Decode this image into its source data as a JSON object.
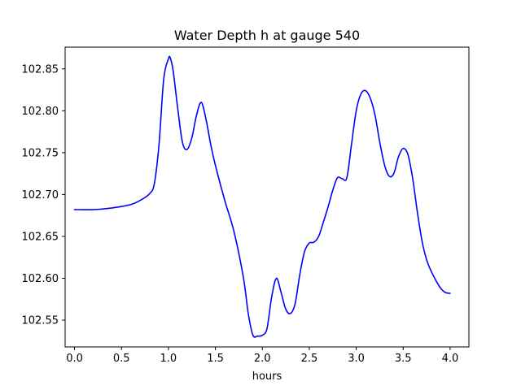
{
  "chart_data": {
    "type": "line",
    "title": "Water Depth h at gauge 540",
    "xlabel": "hours",
    "ylabel": "",
    "xlim": [
      -0.1,
      4.2
    ],
    "ylim": [
      102.518,
      102.876
    ],
    "x_ticks": [
      0.0,
      0.5,
      1.0,
      1.5,
      2.0,
      2.5,
      3.0,
      3.5,
      4.0
    ],
    "x_tick_labels": [
      "0.0",
      "0.5",
      "1.0",
      "1.5",
      "2.0",
      "2.5",
      "3.0",
      "3.5",
      "4.0"
    ],
    "y_ticks": [
      102.55,
      102.6,
      102.65,
      102.7,
      102.75,
      102.8,
      102.85
    ],
    "y_tick_labels": [
      "102.55",
      "102.60",
      "102.65",
      "102.70",
      "102.75",
      "102.80",
      "102.85"
    ],
    "grid": false,
    "legend": "none",
    "series": [
      {
        "color": "#0000ff",
        "x": [
          0.0,
          0.2,
          0.4,
          0.6,
          0.7,
          0.8,
          0.85,
          0.9,
          0.95,
          1.0,
          1.02,
          1.05,
          1.1,
          1.15,
          1.2,
          1.25,
          1.3,
          1.35,
          1.4,
          1.45,
          1.5,
          1.6,
          1.7,
          1.8,
          1.85,
          1.9,
          1.95,
          2.0,
          2.05,
          2.1,
          2.15,
          2.2,
          2.25,
          2.3,
          2.35,
          2.4,
          2.45,
          2.5,
          2.55,
          2.6,
          2.65,
          2.7,
          2.75,
          2.8,
          2.85,
          2.9,
          2.95,
          3.0,
          3.05,
          3.1,
          3.15,
          3.2,
          3.25,
          3.3,
          3.35,
          3.4,
          3.45,
          3.5,
          3.55,
          3.6,
          3.65,
          3.7,
          3.75,
          3.8,
          3.85,
          3.9,
          3.95,
          4.0
        ],
        "values": [
          102.682,
          102.682,
          102.684,
          102.688,
          102.693,
          102.701,
          102.713,
          102.76,
          102.838,
          102.862,
          102.863,
          102.848,
          102.802,
          102.762,
          102.754,
          102.768,
          102.795,
          102.81,
          102.79,
          102.76,
          102.735,
          102.693,
          102.655,
          102.6,
          102.558,
          102.532,
          102.531,
          102.532,
          102.54,
          102.578,
          102.6,
          102.583,
          102.563,
          102.558,
          102.57,
          102.605,
          102.632,
          102.642,
          102.643,
          102.65,
          102.667,
          102.685,
          102.705,
          102.72,
          102.719,
          102.72,
          102.76,
          102.8,
          102.82,
          102.824,
          102.815,
          102.795,
          102.763,
          102.736,
          102.722,
          102.725,
          102.745,
          102.755,
          102.748,
          102.72,
          102.68,
          102.645,
          102.622,
          102.608,
          102.597,
          102.588,
          102.583,
          102.582
        ]
      }
    ]
  }
}
